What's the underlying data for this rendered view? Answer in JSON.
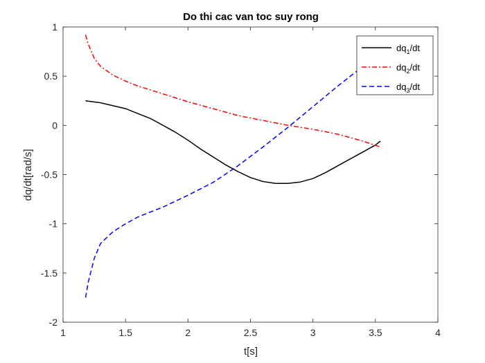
{
  "chart_data": {
    "type": "line",
    "title": "Do thi cac van toc suy rong",
    "xlabel": "t[s]",
    "ylabel": "dq/dt[rad/s]",
    "xlim": [
      1,
      4
    ],
    "ylim": [
      -2,
      1
    ],
    "xticks": [
      1,
      1.5,
      2,
      2.5,
      3,
      3.5,
      4
    ],
    "xtick_labels": [
      "1",
      "1.5",
      "2",
      "2.5",
      "3",
      "3.5",
      "4"
    ],
    "yticks": [
      -2,
      -1.5,
      -1,
      -0.5,
      0,
      0.5,
      1
    ],
    "ytick_labels": [
      "-2",
      "-1.5",
      "-1",
      "-0.5",
      "0",
      "0.5",
      "1"
    ],
    "grid": false,
    "box": true,
    "legend_position": "top-right",
    "series": [
      {
        "name": "dq1/dt",
        "legend": {
          "base": "dq",
          "sub": "1",
          "suffix": "/dt"
        },
        "color": "#000000",
        "line_style": "solid",
        "x": [
          1.18,
          1.3,
          1.4,
          1.5,
          1.6,
          1.7,
          1.8,
          1.9,
          2.0,
          2.1,
          2.2,
          2.3,
          2.4,
          2.5,
          2.6,
          2.7,
          2.8,
          2.9,
          3.0,
          3.1,
          3.2,
          3.3,
          3.4,
          3.5,
          3.54
        ],
        "y": [
          0.25,
          0.23,
          0.2,
          0.17,
          0.12,
          0.07,
          0.0,
          -0.07,
          -0.15,
          -0.24,
          -0.32,
          -0.4,
          -0.47,
          -0.53,
          -0.57,
          -0.59,
          -0.59,
          -0.575,
          -0.54,
          -0.48,
          -0.41,
          -0.34,
          -0.27,
          -0.2,
          -0.16
        ]
      },
      {
        "name": "dq2/dt",
        "legend": {
          "base": "dq",
          "sub": "2",
          "suffix": "/dt"
        },
        "color": "#ff0000",
        "line_style": "dashdot",
        "x": [
          1.18,
          1.2,
          1.25,
          1.3,
          1.4,
          1.5,
          1.6,
          1.7,
          1.8,
          1.9,
          2.0,
          2.2,
          2.4,
          2.6,
          2.8,
          3.0,
          3.2,
          3.4,
          3.54
        ],
        "y": [
          0.92,
          0.83,
          0.68,
          0.6,
          0.51,
          0.45,
          0.4,
          0.36,
          0.32,
          0.28,
          0.24,
          0.17,
          0.1,
          0.05,
          0.0,
          -0.04,
          -0.09,
          -0.16,
          -0.22
        ]
      },
      {
        "name": "dq3/dt",
        "legend": {
          "base": "dq",
          "sub": "3",
          "suffix": "/dt"
        },
        "color": "#0000ff",
        "line_style": "dashed",
        "x": [
          1.18,
          1.2,
          1.25,
          1.3,
          1.4,
          1.5,
          1.6,
          1.7,
          1.8,
          1.9,
          2.0,
          2.2,
          2.4,
          2.6,
          2.8,
          3.0,
          3.2,
          3.35
        ],
        "y": [
          -1.75,
          -1.6,
          -1.35,
          -1.2,
          -1.08,
          -1.0,
          -0.93,
          -0.88,
          -0.83,
          -0.77,
          -0.71,
          -0.58,
          -0.41,
          -0.22,
          -0.02,
          0.19,
          0.4,
          0.55
        ]
      }
    ]
  }
}
